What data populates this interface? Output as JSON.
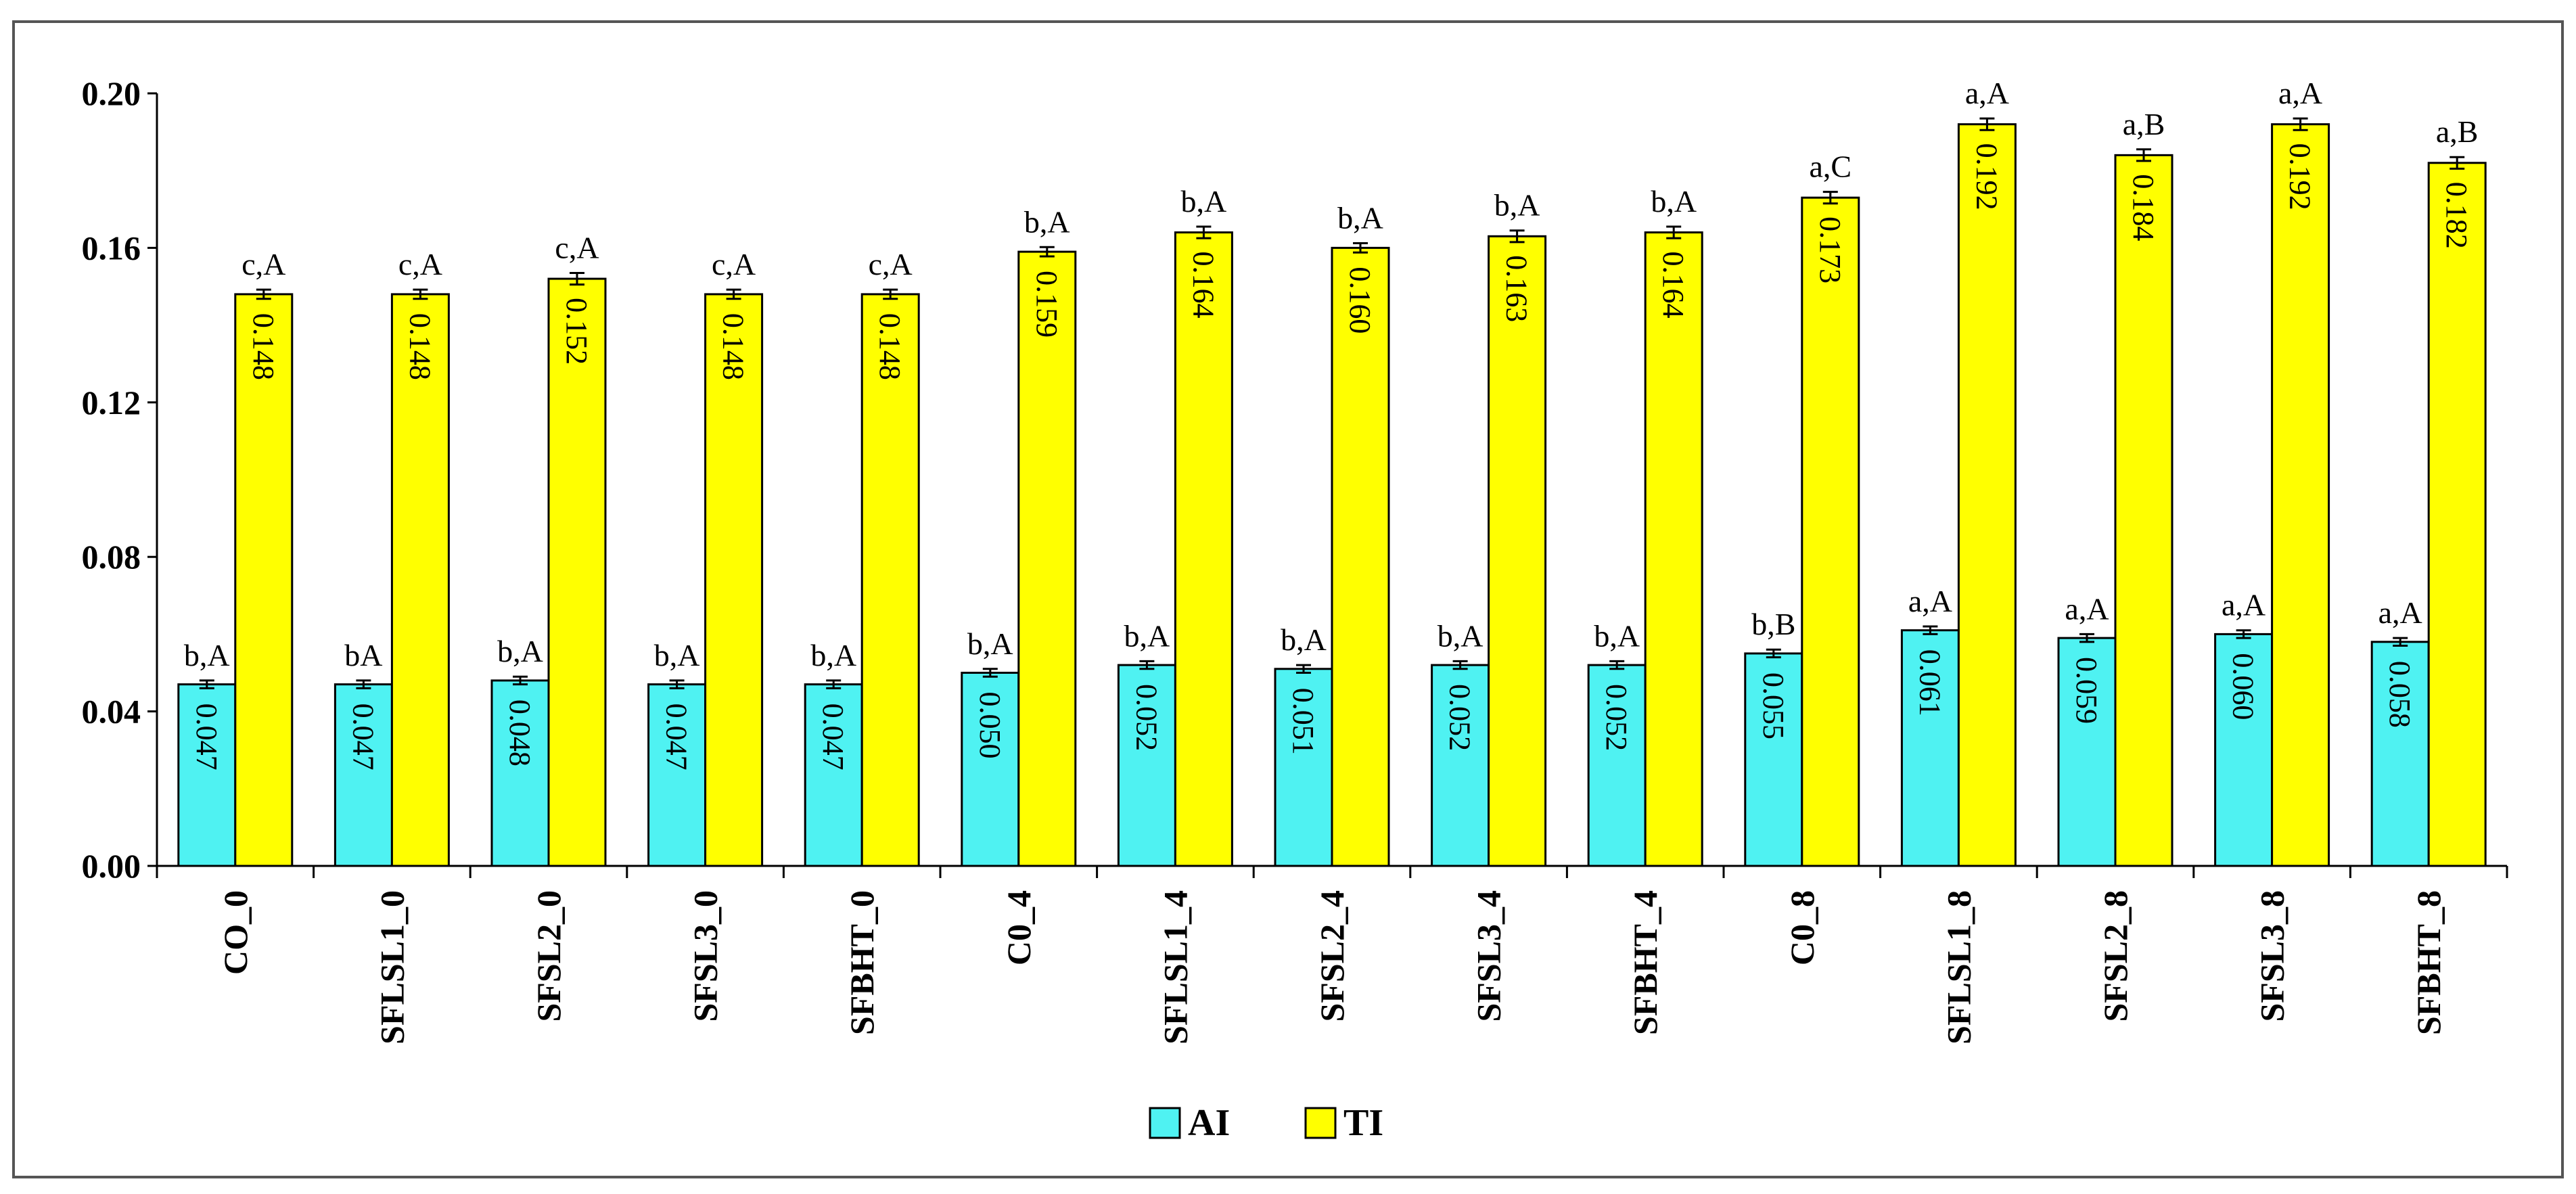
{
  "colors": {
    "AI": "#4FF2F2",
    "TI": "#FFFF00",
    "stroke": "#000000",
    "frame": "#555555",
    "grid": "none"
  },
  "chart_data": {
    "type": "bar",
    "title": "",
    "xlabel": "",
    "ylabel": "",
    "ylim": [
      0.0,
      0.2
    ],
    "yticks": [
      "0.00",
      "0.04",
      "0.08",
      "0.12",
      "0.16",
      "0.20"
    ],
    "yticks_values": [
      0.0,
      0.04,
      0.08,
      0.12,
      0.16,
      0.2
    ],
    "grid": false,
    "legend_position": "bottom-center",
    "categories": [
      "CO_0",
      "SFLSL1_0",
      "SFSL2_0",
      "SFSL3_0",
      "SFBHT_0",
      "C0_4",
      "SFLSL1_4",
      "SFSL2_4",
      "SFSL3_4",
      "SFBHT_4",
      "C0_8",
      "SFLSL1_8",
      "SFSL2_8",
      "SFSL3_8",
      "SFBHT_8"
    ],
    "series": [
      {
        "name": "AI",
        "color": "#4FF2F2",
        "values": [
          0.047,
          0.047,
          0.048,
          0.047,
          0.047,
          0.05,
          0.052,
          0.051,
          0.052,
          0.052,
          0.055,
          0.061,
          0.059,
          0.06,
          0.058
        ],
        "value_labels": [
          "0.047",
          "0.047",
          "0.048",
          "0.047",
          "0.047",
          "0.050",
          "0.052",
          "0.051",
          "0.052",
          "0.052",
          "0.055",
          "0.061",
          "0.059",
          "0.060",
          "0.058"
        ],
        "error": [
          0.001,
          0.001,
          0.001,
          0.001,
          0.001,
          0.001,
          0.001,
          0.001,
          0.001,
          0.001,
          0.001,
          0.001,
          0.001,
          0.001,
          0.001
        ],
        "annotations": [
          "b,A",
          "bA",
          "b,A",
          "b,A",
          "b,A",
          "b,A",
          "b,A",
          "b,A",
          "b,A",
          "b,A",
          "b,B",
          "a,A",
          "a,A",
          "a,A",
          "a,A"
        ]
      },
      {
        "name": "TI",
        "color": "#FFFF00",
        "values": [
          0.148,
          0.148,
          0.152,
          0.148,
          0.148,
          0.159,
          0.164,
          0.16,
          0.163,
          0.164,
          0.173,
          0.192,
          0.184,
          0.192,
          0.182
        ],
        "value_labels": [
          "0.148",
          "0.148",
          "0.152",
          "0.148",
          "0.148",
          "0.159",
          "0.164",
          "0.160",
          "0.163",
          "0.164",
          "0.173",
          "0.192",
          "0.184",
          "0.192",
          "0.182"
        ],
        "error": [
          0.0012,
          0.0012,
          0.0015,
          0.0012,
          0.0012,
          0.0012,
          0.0015,
          0.0012,
          0.0015,
          0.0015,
          0.0015,
          0.0015,
          0.0015,
          0.0015,
          0.0015
        ],
        "annotations": [
          "c,A",
          "c,A",
          "c,A",
          "c,A",
          "c,A",
          "b,A",
          "b,A",
          "b,A",
          "b,A",
          "b,A",
          "a,C",
          "a,A",
          "a,B",
          "a,A",
          "a,B"
        ]
      }
    ]
  }
}
